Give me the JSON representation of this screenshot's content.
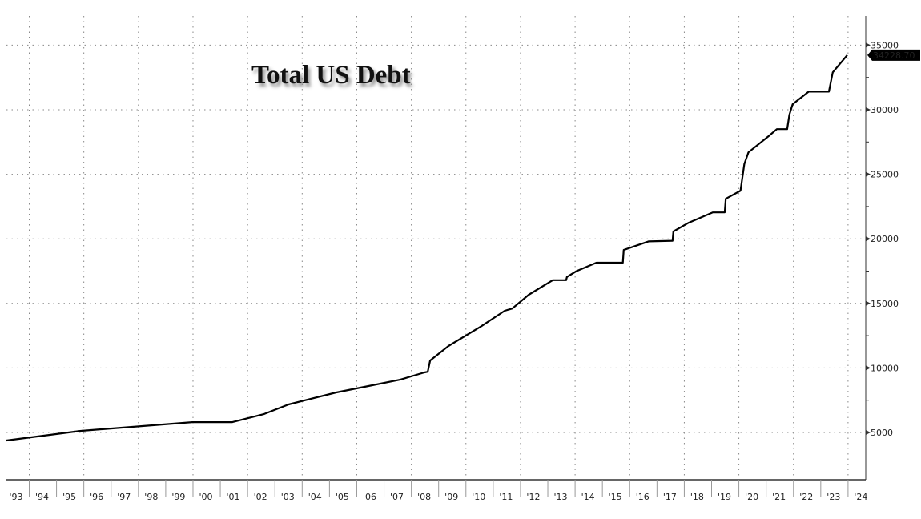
{
  "chart_data": {
    "type": "line",
    "title": "Total US Debt",
    "xlabel": "",
    "ylabel": "",
    "x_tick_labels": [
      "'93",
      "'94",
      "'95",
      "'96",
      "'97",
      "'98",
      "'99",
      "'00",
      "'01",
      "'02",
      "'03",
      "'04",
      "'05",
      "'06",
      "'07",
      "'08",
      "'09",
      "'10",
      "'11",
      "'12",
      "'13",
      "'14",
      "'15",
      "'16",
      "'17",
      "'18",
      "'19",
      "'20",
      "'21",
      "'22",
      "'23",
      "'24"
    ],
    "y_ticks": [
      5000,
      10000,
      15000,
      20000,
      25000,
      30000,
      35000
    ],
    "ylim": [
      1300,
      37000
    ],
    "xlim": [
      1993,
      2024.7
    ],
    "y_axis_side": "right",
    "grid": true,
    "last_value_label": "34228.70",
    "line_color": "#000000",
    "series": [
      {
        "x": [
          1993.16,
          1995.86,
          1999.97,
          2001.44,
          2002.61,
          2003.5,
          2005.25,
          2006.43,
          2007.6,
          2008.48,
          2008.6,
          2008.69,
          2009.36,
          2010.54,
          2011.42,
          2011.7,
          2012.3,
          2013.18,
          2013.67,
          2013.7,
          2014.05,
          2014.78,
          2015.75,
          2015.78,
          2016.69,
          2017.57,
          2017.6,
          2018.16,
          2019.04,
          2019.48,
          2019.52,
          2020.06,
          2020.2,
          2020.35,
          2021.09,
          2021.39,
          2021.77,
          2021.85,
          2021.97,
          2022.56,
          2023.3,
          2023.44,
          2023.97
        ],
        "y": [
          4380,
          5120,
          5800,
          5800,
          6430,
          7170,
          8100,
          8600,
          9100,
          9650,
          9700,
          10580,
          11700,
          13200,
          14430,
          14600,
          15670,
          16800,
          16800,
          17050,
          17500,
          18150,
          18150,
          19140,
          19800,
          19850,
          20570,
          21250,
          22050,
          22050,
          23100,
          23730,
          25800,
          26700,
          27950,
          28500,
          28500,
          29600,
          30430,
          31400,
          31400,
          32900,
          34228.7
        ]
      }
    ]
  }
}
